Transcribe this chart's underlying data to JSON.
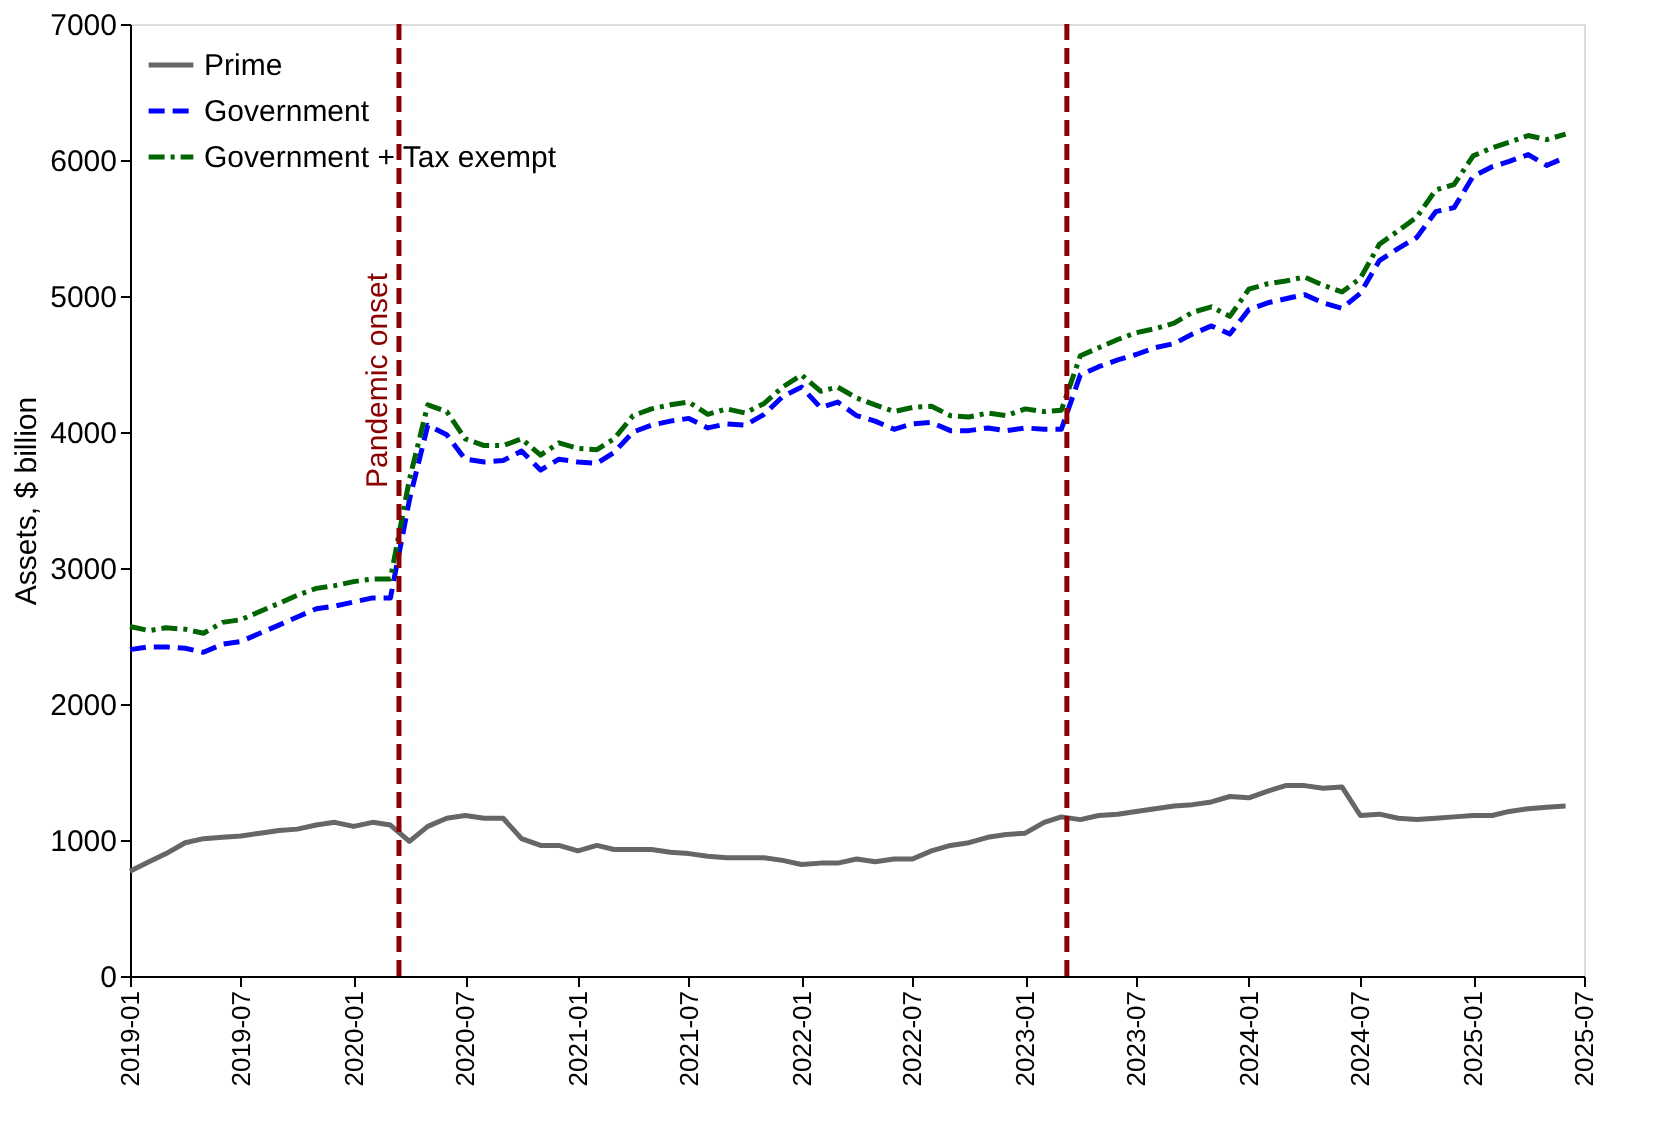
{
  "chart_data": {
    "type": "line",
    "ylabel": "Assets, $ billion",
    "x": [
      "2019-01",
      "2019-02",
      "2019-03",
      "2019-04",
      "2019-05",
      "2019-06",
      "2019-07",
      "2019-08",
      "2019-09",
      "2019-10",
      "2019-11",
      "2019-12",
      "2020-01",
      "2020-02",
      "2020-03",
      "2020-04",
      "2020-05",
      "2020-06",
      "2020-07",
      "2020-08",
      "2020-09",
      "2020-10",
      "2020-11",
      "2020-12",
      "2021-01",
      "2021-02",
      "2021-03",
      "2021-04",
      "2021-05",
      "2021-06",
      "2021-07",
      "2021-08",
      "2021-09",
      "2021-10",
      "2021-11",
      "2021-12",
      "2022-01",
      "2022-02",
      "2022-03",
      "2022-04",
      "2022-05",
      "2022-06",
      "2022-07",
      "2022-08",
      "2022-09",
      "2022-10",
      "2022-11",
      "2022-12",
      "2023-01",
      "2023-02",
      "2023-03",
      "2023-04",
      "2023-05",
      "2023-06",
      "2023-07",
      "2023-08",
      "2023-09",
      "2023-10",
      "2023-11",
      "2023-12",
      "2024-01",
      "2024-02",
      "2024-03",
      "2024-04",
      "2024-05",
      "2024-06",
      "2024-07",
      "2024-08",
      "2024-09",
      "2024-10",
      "2024-11",
      "2024-12",
      "2025-01",
      "2025-02",
      "2025-03",
      "2025-04",
      "2025-05",
      "2025-06"
    ],
    "series": [
      {
        "name": "Prime",
        "color": "#666666",
        "line_style": "solid",
        "values": [
          770,
          840,
          900,
          980,
          1010,
          1020,
          1030,
          1050,
          1070,
          1080,
          1110,
          1130,
          1100,
          1130,
          1110,
          990,
          1100,
          1160,
          1180,
          1160,
          1160,
          1010,
          960,
          960,
          920,
          960,
          930,
          930,
          930,
          910,
          900,
          880,
          870,
          870,
          870,
          850,
          820,
          830,
          830,
          860,
          840,
          860,
          860,
          920,
          960,
          980,
          1020,
          1040,
          1050,
          1130,
          1170,
          1150,
          1180,
          1190,
          1210,
          1230,
          1250,
          1260,
          1280,
          1320,
          1310,
          1360,
          1400,
          1400,
          1380,
          1390,
          1180,
          1190,
          1160,
          1150,
          1160,
          1170,
          1180,
          1180,
          1210,
          1230,
          1240,
          1250
        ]
      },
      {
        "name": "Government",
        "color": "#0000ff",
        "line_style": "dashed",
        "values": [
          2400,
          2420,
          2420,
          2410,
          2380,
          2440,
          2460,
          2520,
          2580,
          2640,
          2700,
          2720,
          2750,
          2780,
          2780,
          3500,
          4050,
          3980,
          3800,
          3780,
          3790,
          3860,
          3720,
          3800,
          3780,
          3770,
          3850,
          4000,
          4050,
          4080,
          4100,
          4030,
          4060,
          4050,
          4130,
          4260,
          4330,
          4180,
          4220,
          4120,
          4080,
          4020,
          4060,
          4070,
          4010,
          4010,
          4030,
          4010,
          4030,
          4020,
          4020,
          4420,
          4480,
          4530,
          4570,
          4620,
          4650,
          4720,
          4780,
          4720,
          4900,
          4950,
          4980,
          5010,
          4950,
          4910,
          5020,
          5260,
          5350,
          5430,
          5620,
          5650,
          5880,
          5950,
          5990,
          6040,
          5960,
          6020
        ]
      },
      {
        "name": "Government + Tax exempt",
        "color": "#006400",
        "line_style": "dashdot",
        "values": [
          2570,
          2540,
          2560,
          2550,
          2520,
          2600,
          2620,
          2680,
          2740,
          2800,
          2850,
          2870,
          2900,
          2920,
          2920,
          3650,
          4200,
          4150,
          3950,
          3900,
          3900,
          3950,
          3830,
          3920,
          3880,
          3870,
          3950,
          4120,
          4170,
          4200,
          4220,
          4130,
          4170,
          4140,
          4210,
          4330,
          4420,
          4300,
          4330,
          4250,
          4200,
          4150,
          4180,
          4190,
          4120,
          4110,
          4140,
          4120,
          4170,
          4150,
          4160,
          4560,
          4620,
          4680,
          4730,
          4760,
          4800,
          4880,
          4920,
          4850,
          5050,
          5090,
          5110,
          5140,
          5080,
          5030,
          5130,
          5380,
          5480,
          5580,
          5780,
          5820,
          6030,
          6090,
          6130,
          6180,
          6150,
          6190
        ]
      }
    ],
    "xlim": [
      "2019-01",
      "2025-07"
    ],
    "xticks": [
      "2019-01",
      "2019-07",
      "2020-01",
      "2020-07",
      "2021-01",
      "2021-07",
      "2022-01",
      "2022-07",
      "2023-01",
      "2023-07",
      "2024-01",
      "2024-07",
      "2025-01",
      "2025-07"
    ],
    "ylim": [
      0,
      7000
    ],
    "yticks": [
      0,
      1000,
      2000,
      3000,
      4000,
      5000,
      6000,
      7000
    ],
    "ref_lines": [
      {
        "axis": "x",
        "value": "2020-03-15",
        "label": "Pandemic onset",
        "color": "#8b0000",
        "line_style": "dashed"
      },
      {
        "axis": "x",
        "value": "2023-03-10",
        "label": null,
        "color": "#8b0000",
        "line_style": "dashed"
      }
    ],
    "grid": false,
    "legend": "top left"
  }
}
